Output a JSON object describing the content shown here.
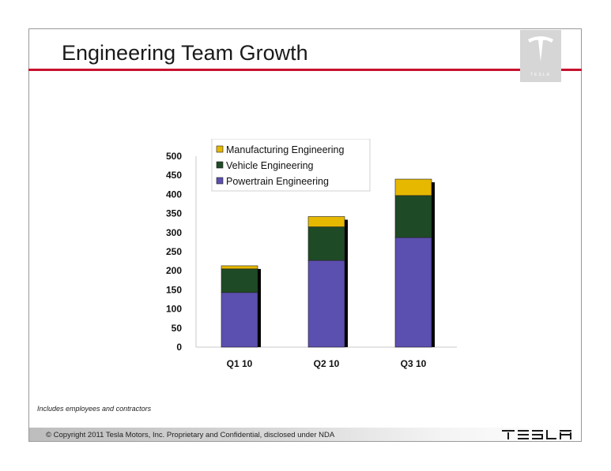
{
  "slide": {
    "title": "Engineering Team Growth",
    "caption": "Includes employees and contractors",
    "footer": "© Copyright 2011 Tesla Motors, Inc. Proprietary and Confidential, disclosed under NDA",
    "brand_wordmark": "TESLA",
    "accent_color": "#c8102e"
  },
  "chart_data": {
    "type": "bar",
    "stacked": true,
    "categories": [
      "Q1 10",
      "Q2 10",
      "Q3 10"
    ],
    "series": [
      {
        "name": "Powertrain Engineering",
        "values": [
          143,
          227,
          287
        ],
        "color": "#5b4fb0"
      },
      {
        "name": "Vehicle Engineering",
        "values": [
          62,
          88,
          110
        ],
        "color": "#1f4a26"
      },
      {
        "name": "Manufacturing Engineering",
        "values": [
          8,
          27,
          43
        ],
        "color": "#e6b800"
      }
    ],
    "ylim": [
      0,
      500
    ],
    "yticks": [
      0,
      50,
      100,
      150,
      200,
      250,
      300,
      350,
      400,
      450,
      500
    ],
    "legend_order": [
      "Manufacturing Engineering",
      "Vehicle Engineering",
      "Powertrain Engineering"
    ],
    "legend_position": "top",
    "grid": false
  }
}
